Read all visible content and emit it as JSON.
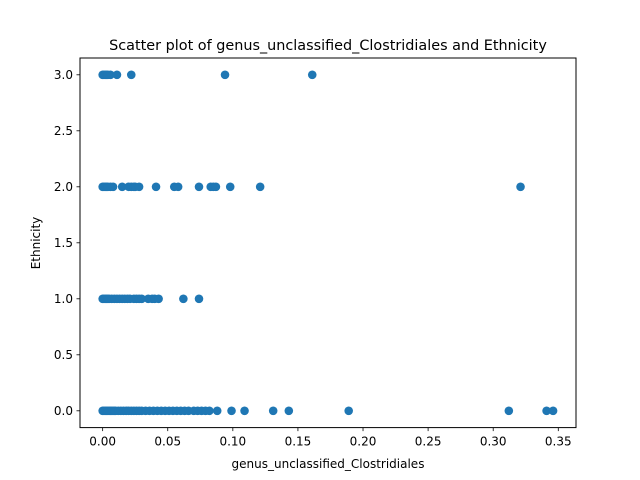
{
  "chart_data": {
    "type": "scatter",
    "title": "Scatter plot of genus_unclassified_Clostridiales and Ethnicity",
    "xlabel": "genus_unclassified_Clostridiales",
    "ylabel": "Ethnicity",
    "xlim": [
      -0.0174,
      0.3636
    ],
    "ylim": [
      -0.15,
      3.15
    ],
    "xticks": [
      0.0,
      0.05,
      0.1,
      0.15,
      0.2,
      0.25,
      0.3,
      0.35
    ],
    "xtick_labels": [
      "0.00",
      "0.05",
      "0.10",
      "0.15",
      "0.20",
      "0.25",
      "0.30",
      "0.35"
    ],
    "yticks": [
      0.0,
      0.5,
      1.0,
      1.5,
      2.0,
      2.5,
      3.0
    ],
    "ytick_labels": [
      "0.0",
      "0.5",
      "1.0",
      "1.5",
      "2.0",
      "2.5",
      "3.0"
    ],
    "grid": false,
    "marker_color": "#1f77b4",
    "series": [
      {
        "points": [
          [
            0.0,
            3
          ],
          [
            0.001,
            3
          ],
          [
            0.002,
            3
          ],
          [
            0.003,
            3
          ],
          [
            0.004,
            3
          ],
          [
            0.006,
            3
          ],
          [
            0.011,
            3
          ],
          [
            0.022,
            3
          ],
          [
            0.094,
            3
          ],
          [
            0.161,
            3
          ],
          [
            0.0,
            2
          ],
          [
            0.001,
            2
          ],
          [
            0.002,
            2
          ],
          [
            0.003,
            2
          ],
          [
            0.004,
            2
          ],
          [
            0.006,
            2
          ],
          [
            0.008,
            2
          ],
          [
            0.015,
            2
          ],
          [
            0.02,
            2
          ],
          [
            0.022,
            2
          ],
          [
            0.024,
            2
          ],
          [
            0.025,
            2
          ],
          [
            0.028,
            2
          ],
          [
            0.041,
            2
          ],
          [
            0.055,
            2
          ],
          [
            0.058,
            2
          ],
          [
            0.074,
            2
          ],
          [
            0.083,
            2
          ],
          [
            0.085,
            2
          ],
          [
            0.087,
            2
          ],
          [
            0.098,
            2
          ],
          [
            0.121,
            2
          ],
          [
            0.321,
            2
          ],
          [
            0.0,
            1
          ],
          [
            0.001,
            1
          ],
          [
            0.002,
            1
          ],
          [
            0.003,
            1
          ],
          [
            0.004,
            1
          ],
          [
            0.005,
            1
          ],
          [
            0.007,
            1
          ],
          [
            0.009,
            1
          ],
          [
            0.011,
            1
          ],
          [
            0.013,
            1
          ],
          [
            0.015,
            1
          ],
          [
            0.017,
            1
          ],
          [
            0.019,
            1
          ],
          [
            0.021,
            1
          ],
          [
            0.024,
            1
          ],
          [
            0.026,
            1
          ],
          [
            0.028,
            1
          ],
          [
            0.03,
            1
          ],
          [
            0.035,
            1
          ],
          [
            0.038,
            1
          ],
          [
            0.04,
            1
          ],
          [
            0.043,
            1
          ],
          [
            0.062,
            1
          ],
          [
            0.074,
            1
          ],
          [
            0.0,
            0
          ],
          [
            0.001,
            0
          ],
          [
            0.002,
            0
          ],
          [
            0.003,
            0
          ],
          [
            0.004,
            0
          ],
          [
            0.005,
            0
          ],
          [
            0.006,
            0
          ],
          [
            0.007,
            0
          ],
          [
            0.008,
            0
          ],
          [
            0.009,
            0
          ],
          [
            0.01,
            0
          ],
          [
            0.012,
            0
          ],
          [
            0.014,
            0
          ],
          [
            0.016,
            0
          ],
          [
            0.018,
            0
          ],
          [
            0.02,
            0
          ],
          [
            0.022,
            0
          ],
          [
            0.024,
            0
          ],
          [
            0.026,
            0
          ],
          [
            0.028,
            0
          ],
          [
            0.03,
            0
          ],
          [
            0.033,
            0
          ],
          [
            0.036,
            0
          ],
          [
            0.039,
            0
          ],
          [
            0.042,
            0
          ],
          [
            0.045,
            0
          ],
          [
            0.048,
            0
          ],
          [
            0.051,
            0
          ],
          [
            0.054,
            0
          ],
          [
            0.057,
            0
          ],
          [
            0.06,
            0
          ],
          [
            0.063,
            0
          ],
          [
            0.066,
            0
          ],
          [
            0.07,
            0
          ],
          [
            0.073,
            0
          ],
          [
            0.076,
            0
          ],
          [
            0.079,
            0
          ],
          [
            0.082,
            0
          ],
          [
            0.088,
            0
          ],
          [
            0.099,
            0
          ],
          [
            0.109,
            0
          ],
          [
            0.131,
            0
          ],
          [
            0.143,
            0
          ],
          [
            0.189,
            0
          ],
          [
            0.312,
            0
          ],
          [
            0.341,
            0
          ],
          [
            0.346,
            0
          ]
        ]
      }
    ]
  }
}
